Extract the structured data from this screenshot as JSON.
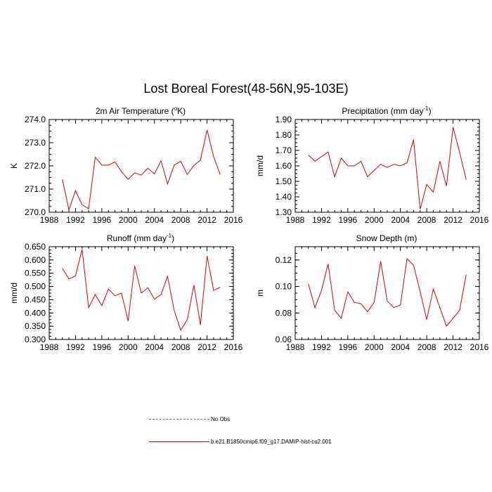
{
  "title": "Lost Boreal Forest(48-56N,95-103E)",
  "colors": {
    "model_line": "#e00000",
    "obs_line": "#6b6bd6",
    "axis": "#000000"
  },
  "legend": {
    "obs_label": "No Obs",
    "model_label": "b.e21.B1850cmip6.f09_g17.DAMIP-hist-co2.001"
  },
  "chart_data": [
    {
      "type": "line",
      "title": "2m Air Temperature (°K)",
      "title_main": "2m Air Temperature (",
      "title_sup": "o",
      "title_tail": "K)",
      "ylabel": "K",
      "xlim": [
        1988,
        2016
      ],
      "ylim": [
        270.0,
        274.0
      ],
      "x_ticks": [
        "1988",
        "1992",
        "1996",
        "2000",
        "2004",
        "2008",
        "2012",
        "2016"
      ],
      "y_ticks": [
        "270.0",
        "271.0",
        "272.0",
        "273.0",
        "274.0"
      ],
      "x": [
        1990,
        1991,
        1992,
        1993,
        1994,
        1995,
        1996,
        1997,
        1998,
        1999,
        2000,
        2001,
        2002,
        2003,
        2004,
        2005,
        2006,
        2007,
        2008,
        2009,
        2010,
        2011,
        2012,
        2013,
        2014
      ],
      "series": [
        {
          "values": [
            271.42,
            270.1,
            270.93,
            270.32,
            270.15,
            272.37,
            272.03,
            272.03,
            272.17,
            271.75,
            271.42,
            271.7,
            271.6,
            271.9,
            271.65,
            272.22,
            271.22,
            272.03,
            272.2,
            271.63,
            272.02,
            272.25,
            273.55,
            272.4,
            271.62
          ]
        }
      ]
    },
    {
      "type": "line",
      "title": "Precipitation (mm day-1)",
      "title_main": "Precipitation (mm day",
      "title_sup": "-1",
      "title_tail": ")",
      "ylabel": "mm/d",
      "xlim": [
        1988,
        2016
      ],
      "ylim": [
        1.3,
        1.9
      ],
      "x_ticks": [
        "1988",
        "1992",
        "1996",
        "2000",
        "2004",
        "2008",
        "2012",
        "2016"
      ],
      "y_ticks": [
        "1.30",
        "1.40",
        "1.50",
        "1.60",
        "1.70",
        "1.80",
        "1.90"
      ],
      "x": [
        1990,
        1991,
        1992,
        1993,
        1994,
        1995,
        1996,
        1997,
        1998,
        1999,
        2000,
        2001,
        2002,
        2003,
        2004,
        2005,
        2006,
        2007,
        2008,
        2009,
        2010,
        2011,
        2012,
        2013,
        2014
      ],
      "series": [
        {
          "values": [
            1.67,
            1.63,
            1.66,
            1.69,
            1.53,
            1.65,
            1.6,
            1.6,
            1.63,
            1.53,
            1.57,
            1.61,
            1.59,
            1.61,
            1.6,
            1.62,
            1.77,
            1.32,
            1.48,
            1.43,
            1.63,
            1.47,
            1.85,
            1.69,
            1.51
          ]
        }
      ]
    },
    {
      "type": "line",
      "title": "Runoff (mm day-1)",
      "title_main": "Runoff (mm day",
      "title_sup": "-1",
      "title_tail": ")",
      "ylabel": "mm/d",
      "xlim": [
        1988,
        2016
      ],
      "ylim": [
        0.3,
        0.65
      ],
      "x_ticks": [
        "1988",
        "1992",
        "1996",
        "2000",
        "2004",
        "2008",
        "2012",
        "2016"
      ],
      "y_ticks": [
        "0.300",
        "0.350",
        "0.400",
        "0.450",
        "0.500",
        "0.550",
        "0.600",
        "0.650"
      ],
      "x": [
        1990,
        1991,
        1992,
        1993,
        1994,
        1995,
        1996,
        1997,
        1998,
        1999,
        2000,
        2001,
        2002,
        2003,
        2004,
        2005,
        2006,
        2007,
        2008,
        2009,
        2010,
        2011,
        2012,
        2013,
        2014
      ],
      "series": [
        {
          "values": [
            0.568,
            0.528,
            0.54,
            0.64,
            0.42,
            0.47,
            0.428,
            0.49,
            0.465,
            0.475,
            0.37,
            0.578,
            0.475,
            0.495,
            0.452,
            0.47,
            0.538,
            0.41,
            0.335,
            0.375,
            0.505,
            0.355,
            0.615,
            0.485,
            0.497
          ]
        }
      ]
    },
    {
      "type": "line",
      "title": "Snow Depth (m)",
      "title_main": "Snow Depth (m)",
      "title_sup": "",
      "title_tail": "",
      "ylabel": "m",
      "xlim": [
        1988,
        2016
      ],
      "ylim": [
        0.06,
        0.13
      ],
      "x_ticks": [
        "1988",
        "1992",
        "1996",
        "2000",
        "2004",
        "2008",
        "2012",
        "2016"
      ],
      "y_ticks": [
        "0.06",
        "0.08",
        "0.10",
        "0.12"
      ],
      "x": [
        1990,
        1991,
        1992,
        1993,
        1994,
        1995,
        1996,
        1997,
        1998,
        1999,
        2000,
        2001,
        2002,
        2003,
        2004,
        2005,
        2006,
        2007,
        2008,
        2009,
        2010,
        2011,
        2012,
        2013,
        2014
      ],
      "series": [
        {
          "values": [
            0.102,
            0.084,
            0.097,
            0.117,
            0.082,
            0.076,
            0.096,
            0.088,
            0.087,
            0.081,
            0.088,
            0.119,
            0.089,
            0.084,
            0.086,
            0.121,
            0.116,
            0.096,
            0.075,
            0.098,
            0.084,
            0.07,
            0.076,
            0.082,
            0.109
          ]
        }
      ]
    }
  ]
}
